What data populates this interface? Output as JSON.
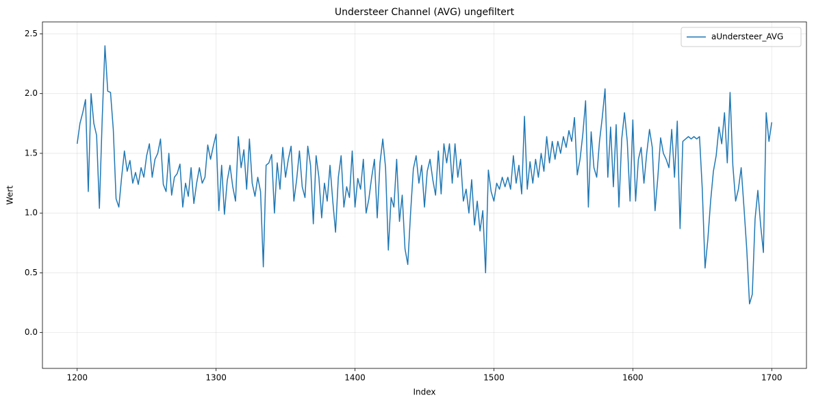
{
  "chart_data": {
    "type": "line",
    "title": "Understeer Channel (AVG) ungefiltert",
    "xlabel": "Index",
    "ylabel": "Wert",
    "x": [
      1200,
      1202,
      1204,
      1206,
      1208,
      1210,
      1212,
      1214,
      1216,
      1218,
      1220,
      1222,
      1224,
      1226,
      1228,
      1230,
      1232,
      1234,
      1236,
      1238,
      1240,
      1242,
      1244,
      1246,
      1248,
      1250,
      1252,
      1254,
      1256,
      1258,
      1260,
      1262,
      1264,
      1266,
      1268,
      1270,
      1272,
      1274,
      1276,
      1278,
      1280,
      1282,
      1284,
      1286,
      1288,
      1290,
      1292,
      1294,
      1296,
      1298,
      1300,
      1302,
      1304,
      1306,
      1308,
      1310,
      1312,
      1314,
      1316,
      1318,
      1320,
      1322,
      1324,
      1326,
      1328,
      1330,
      1332,
      1334,
      1336,
      1338,
      1340,
      1342,
      1344,
      1346,
      1348,
      1350,
      1352,
      1354,
      1356,
      1358,
      1360,
      1362,
      1364,
      1366,
      1368,
      1370,
      1372,
      1374,
      1376,
      1378,
      1380,
      1382,
      1384,
      1386,
      1388,
      1390,
      1392,
      1394,
      1396,
      1398,
      1400,
      1402,
      1404,
      1406,
      1408,
      1410,
      1412,
      1414,
      1416,
      1418,
      1420,
      1422,
      1424,
      1426,
      1428,
      1430,
      1432,
      1434,
      1436,
      1438,
      1440,
      1442,
      1444,
      1446,
      1448,
      1450,
      1452,
      1454,
      1456,
      1458,
      1460,
      1462,
      1464,
      1466,
      1468,
      1470,
      1472,
      1474,
      1476,
      1478,
      1480,
      1482,
      1484,
      1486,
      1488,
      1490,
      1492,
      1494,
      1496,
      1498,
      1500,
      1502,
      1504,
      1506,
      1508,
      1510,
      1512,
      1514,
      1516,
      1518,
      1520,
      1522,
      1524,
      1526,
      1528,
      1530,
      1532,
      1534,
      1536,
      1538,
      1540,
      1542,
      1544,
      1546,
      1548,
      1550,
      1552,
      1554,
      1556,
      1558,
      1560,
      1562,
      1564,
      1566,
      1568,
      1570,
      1572,
      1574,
      1576,
      1578,
      1580,
      1582,
      1584,
      1586,
      1588,
      1590,
      1592,
      1594,
      1596,
      1598,
      1600,
      1602,
      1604,
      1606,
      1608,
      1610,
      1612,
      1614,
      1616,
      1618,
      1620,
      1622,
      1624,
      1626,
      1628,
      1630,
      1632,
      1634,
      1636,
      1638,
      1640,
      1642,
      1644,
      1646,
      1648,
      1650,
      1652,
      1654,
      1656,
      1658,
      1660,
      1662,
      1664,
      1666,
      1668,
      1670,
      1672,
      1674,
      1676,
      1678,
      1680,
      1682,
      1684,
      1686,
      1688,
      1690,
      1692,
      1694,
      1696,
      1698,
      1700
    ],
    "series": [
      {
        "name": "aUndersteer_AVG",
        "color": "#1f77b4",
        "values": [
          1.58,
          1.75,
          1.84,
          1.95,
          1.18,
          2.0,
          1.75,
          1.65,
          1.04,
          1.78,
          2.4,
          2.02,
          2.01,
          1.7,
          1.12,
          1.05,
          1.3,
          1.52,
          1.35,
          1.44,
          1.25,
          1.34,
          1.24,
          1.38,
          1.3,
          1.48,
          1.58,
          1.3,
          1.45,
          1.5,
          1.62,
          1.24,
          1.18,
          1.5,
          1.15,
          1.3,
          1.33,
          1.41,
          1.05,
          1.25,
          1.14,
          1.38,
          1.08,
          1.25,
          1.38,
          1.25,
          1.3,
          1.57,
          1.45,
          1.56,
          1.66,
          1.02,
          1.4,
          0.99,
          1.27,
          1.4,
          1.22,
          1.1,
          1.64,
          1.38,
          1.53,
          1.2,
          1.62,
          1.25,
          1.14,
          1.3,
          1.18,
          0.55,
          1.4,
          1.42,
          1.49,
          1.0,
          1.42,
          1.2,
          1.55,
          1.3,
          1.45,
          1.56,
          1.1,
          1.28,
          1.52,
          1.22,
          1.13,
          1.56,
          1.4,
          0.91,
          1.48,
          1.3,
          0.96,
          1.25,
          1.1,
          1.4,
          1.1,
          0.84,
          1.3,
          1.48,
          1.05,
          1.22,
          1.13,
          1.52,
          1.05,
          1.29,
          1.2,
          1.45,
          1.0,
          1.12,
          1.3,
          1.45,
          0.96,
          1.42,
          1.62,
          1.38,
          0.69,
          1.13,
          1.05,
          1.45,
          0.93,
          1.15,
          0.7,
          0.57,
          1.0,
          1.37,
          1.48,
          1.25,
          1.4,
          1.05,
          1.35,
          1.45,
          1.28,
          1.15,
          1.52,
          1.16,
          1.58,
          1.42,
          1.58,
          1.25,
          1.58,
          1.3,
          1.45,
          1.1,
          1.2,
          1.0,
          1.28,
          0.9,
          1.1,
          0.85,
          1.02,
          0.5,
          1.36,
          1.18,
          1.1,
          1.25,
          1.2,
          1.3,
          1.22,
          1.3,
          1.2,
          1.48,
          1.25,
          1.4,
          1.16,
          1.81,
          1.2,
          1.43,
          1.25,
          1.45,
          1.3,
          1.5,
          1.35,
          1.64,
          1.42,
          1.6,
          1.45,
          1.6,
          1.5,
          1.64,
          1.55,
          1.69,
          1.6,
          1.8,
          1.32,
          1.45,
          1.66,
          1.94,
          1.05,
          1.68,
          1.38,
          1.3,
          1.6,
          1.8,
          2.04,
          1.3,
          1.72,
          1.22,
          1.74,
          1.05,
          1.62,
          1.84,
          1.6,
          1.1,
          1.78,
          1.1,
          1.45,
          1.55,
          1.25,
          1.5,
          1.7,
          1.55,
          1.02,
          1.3,
          1.63,
          1.5,
          1.45,
          1.38,
          1.7,
          1.3,
          1.77,
          0.87,
          1.6,
          1.62,
          1.64,
          1.62,
          1.64,
          1.62,
          1.64,
          1.2,
          0.54,
          0.78,
          1.1,
          1.35,
          1.48,
          1.72,
          1.58,
          1.84,
          1.42,
          2.01,
          1.4,
          1.1,
          1.2,
          1.38,
          1.05,
          0.7,
          0.24,
          0.32,
          0.95,
          1.19,
          0.9,
          0.67,
          1.84,
          1.6,
          1.76
        ]
      }
    ],
    "xlim": [
      1175,
      1725
    ],
    "xticks": [
      1200,
      1300,
      1400,
      1500,
      1600,
      1700
    ],
    "ylim": [
      -0.3,
      2.6
    ],
    "yticks": [
      {
        "value": 0,
        "label": "0.0"
      },
      0.5,
      {
        "value": 1,
        "label": "1.0"
      },
      1.5,
      {
        "value": 2,
        "label": "2.0"
      },
      2.5
    ],
    "grid": true,
    "legend": "upper right"
  }
}
